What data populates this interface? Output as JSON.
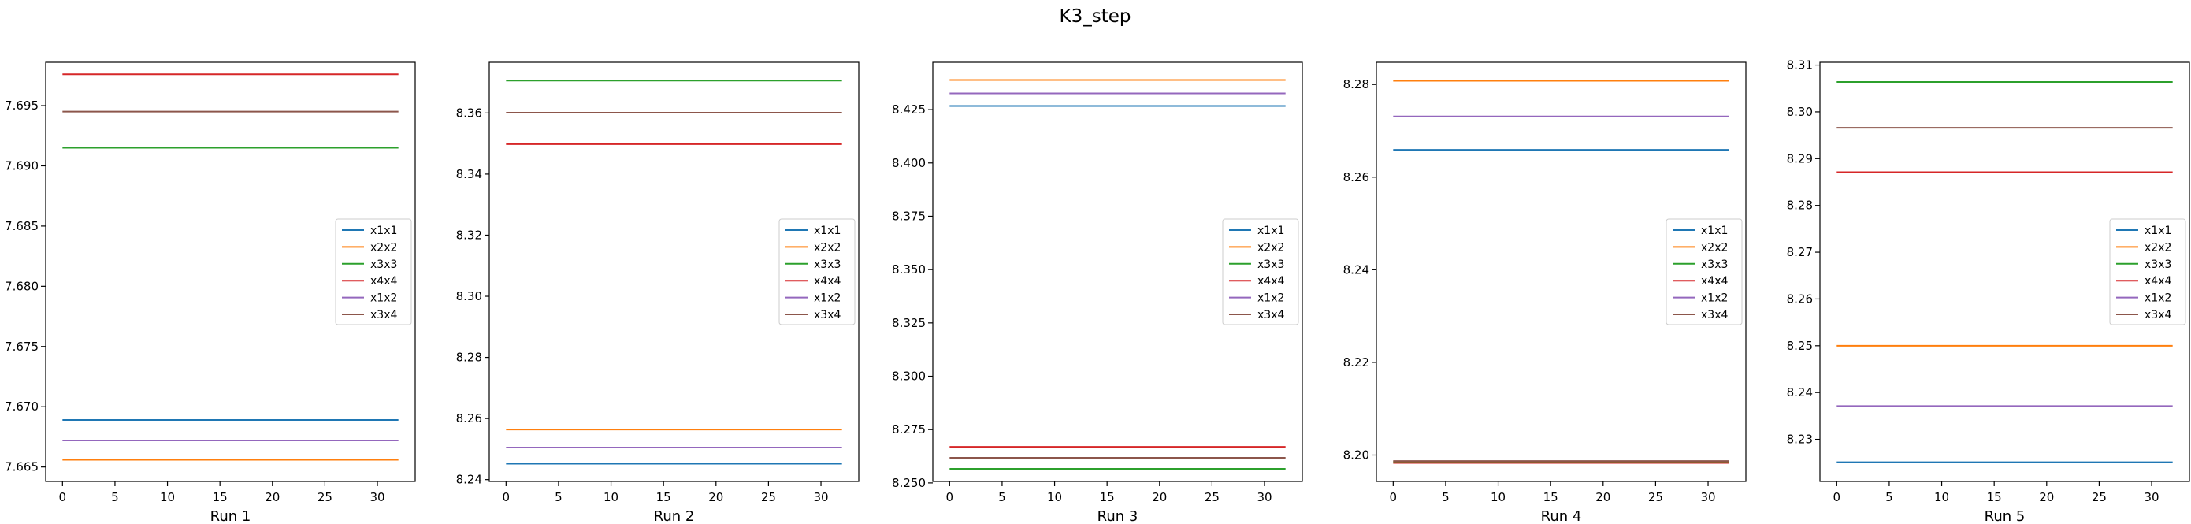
{
  "title": "K3_step",
  "chart_data": [
    {
      "type": "line",
      "xlabel": "Run 1",
      "xlim": [
        -1.6,
        33.6
      ],
      "ylim": [
        7.6638,
        7.6986
      ],
      "xticks": [
        0,
        5,
        10,
        15,
        20,
        25,
        30
      ],
      "yticks": [
        7.665,
        7.67,
        7.675,
        7.68,
        7.685,
        7.69,
        7.695
      ],
      "ytick_labels": [
        "7.665",
        "7.670",
        "7.675",
        "7.680",
        "7.685",
        "7.690",
        "7.695"
      ],
      "x_range": [
        0,
        32
      ],
      "legend_position": "center-right",
      "series": [
        {
          "name": "x1x1",
          "color": "#1f77b4",
          "value": 7.6689
        },
        {
          "name": "x2x2",
          "color": "#ff7f0e",
          "value": 7.6656
        },
        {
          "name": "x3x3",
          "color": "#2ca02c",
          "value": 7.6915
        },
        {
          "name": "x4x4",
          "color": "#d62728",
          "value": 7.6976
        },
        {
          "name": "x1x2",
          "color": "#9467bd",
          "value": 7.6672
        },
        {
          "name": "x3x4",
          "color": "#8c564b",
          "value": 7.6945
        }
      ]
    },
    {
      "type": "line",
      "xlabel": "Run 2",
      "xlim": [
        -1.6,
        33.6
      ],
      "ylim": [
        8.2394,
        8.3766
      ],
      "xticks": [
        0,
        5,
        10,
        15,
        20,
        25,
        30
      ],
      "yticks": [
        8.24,
        8.26,
        8.28,
        8.3,
        8.32,
        8.34,
        8.36
      ],
      "ytick_labels": [
        "8.24",
        "8.26",
        "8.28",
        "8.30",
        "8.32",
        "8.34",
        "8.36"
      ],
      "x_range": [
        0,
        32
      ],
      "legend_position": "center-right",
      "series": [
        {
          "name": "x1x1",
          "color": "#1f77b4",
          "value": 8.2452
        },
        {
          "name": "x2x2",
          "color": "#ff7f0e",
          "value": 8.2564
        },
        {
          "name": "x3x3",
          "color": "#2ca02c",
          "value": 8.3706
        },
        {
          "name": "x4x4",
          "color": "#d62728",
          "value": 8.3498
        },
        {
          "name": "x1x2",
          "color": "#9467bd",
          "value": 8.2505
        },
        {
          "name": "x3x4",
          "color": "#8c564b",
          "value": 8.3601
        }
      ]
    },
    {
      "type": "line",
      "xlabel": "Run 3",
      "xlim": [
        -1.6,
        33.6
      ],
      "ylim": [
        8.2507,
        8.4472
      ],
      "xticks": [
        0,
        5,
        10,
        15,
        20,
        25,
        30
      ],
      "yticks": [
        8.25,
        8.275,
        8.3,
        8.325,
        8.35,
        8.375,
        8.4,
        8.425
      ],
      "ytick_labels": [
        "8.250",
        "8.275",
        "8.300",
        "8.325",
        "8.350",
        "8.375",
        "8.400",
        "8.425"
      ],
      "x_range": [
        0,
        32
      ],
      "legend_position": "center-right",
      "series": [
        {
          "name": "x1x1",
          "color": "#1f77b4",
          "value": 8.4267
        },
        {
          "name": "x2x2",
          "color": "#ff7f0e",
          "value": 8.4389
        },
        {
          "name": "x3x3",
          "color": "#2ca02c",
          "value": 8.2566
        },
        {
          "name": "x4x4",
          "color": "#d62728",
          "value": 8.2669
        },
        {
          "name": "x1x2",
          "color": "#9467bd",
          "value": 8.4326
        },
        {
          "name": "x3x4",
          "color": "#8c564b",
          "value": 8.2618
        }
      ]
    },
    {
      "type": "line",
      "xlabel": "Run 4",
      "xlim": [
        -1.6,
        33.6
      ],
      "ylim": [
        8.1943,
        8.2848
      ],
      "xticks": [
        0,
        5,
        10,
        15,
        20,
        25,
        30
      ],
      "yticks": [
        8.2,
        8.22,
        8.24,
        8.26,
        8.28
      ],
      "ytick_labels": [
        "8.20",
        "8.22",
        "8.24",
        "8.26",
        "8.28"
      ],
      "x_range": [
        0,
        32
      ],
      "legend_position": "center-right",
      "series": [
        {
          "name": "x1x1",
          "color": "#1f77b4",
          "value": 8.2659
        },
        {
          "name": "x2x2",
          "color": "#ff7f0e",
          "value": 8.2808
        },
        {
          "name": "x3x3",
          "color": "#2ca02c",
          "value": 8.1985
        },
        {
          "name": "x4x4",
          "color": "#d62728",
          "value": 8.1983
        },
        {
          "name": "x1x2",
          "color": "#9467bd",
          "value": 8.2731
        },
        {
          "name": "x3x4",
          "color": "#8c564b",
          "value": 8.1987
        }
      ]
    },
    {
      "type": "line",
      "xlabel": "Run 5",
      "xlim": [
        -1.6,
        33.6
      ],
      "ylim": [
        8.221,
        8.3106
      ],
      "xticks": [
        0,
        5,
        10,
        15,
        20,
        25,
        30
      ],
      "yticks": [
        8.23,
        8.24,
        8.25,
        8.26,
        8.27,
        8.28,
        8.29,
        8.3,
        8.31
      ],
      "ytick_labels": [
        "8.23",
        "8.24",
        "8.25",
        "8.26",
        "8.27",
        "8.28",
        "8.29",
        "8.30",
        "8.31"
      ],
      "x_range": [
        0,
        32
      ],
      "legend_position": "center-right",
      "series": [
        {
          "name": "x1x1",
          "color": "#1f77b4",
          "value": 8.2251
        },
        {
          "name": "x2x2",
          "color": "#ff7f0e",
          "value": 8.25
        },
        {
          "name": "x3x3",
          "color": "#2ca02c",
          "value": 8.3064
        },
        {
          "name": "x4x4",
          "color": "#d62728",
          "value": 8.2871
        },
        {
          "name": "x1x2",
          "color": "#9467bd",
          "value": 8.2371
        },
        {
          "name": "x3x4",
          "color": "#8c564b",
          "value": 8.2966
        }
      ]
    }
  ]
}
